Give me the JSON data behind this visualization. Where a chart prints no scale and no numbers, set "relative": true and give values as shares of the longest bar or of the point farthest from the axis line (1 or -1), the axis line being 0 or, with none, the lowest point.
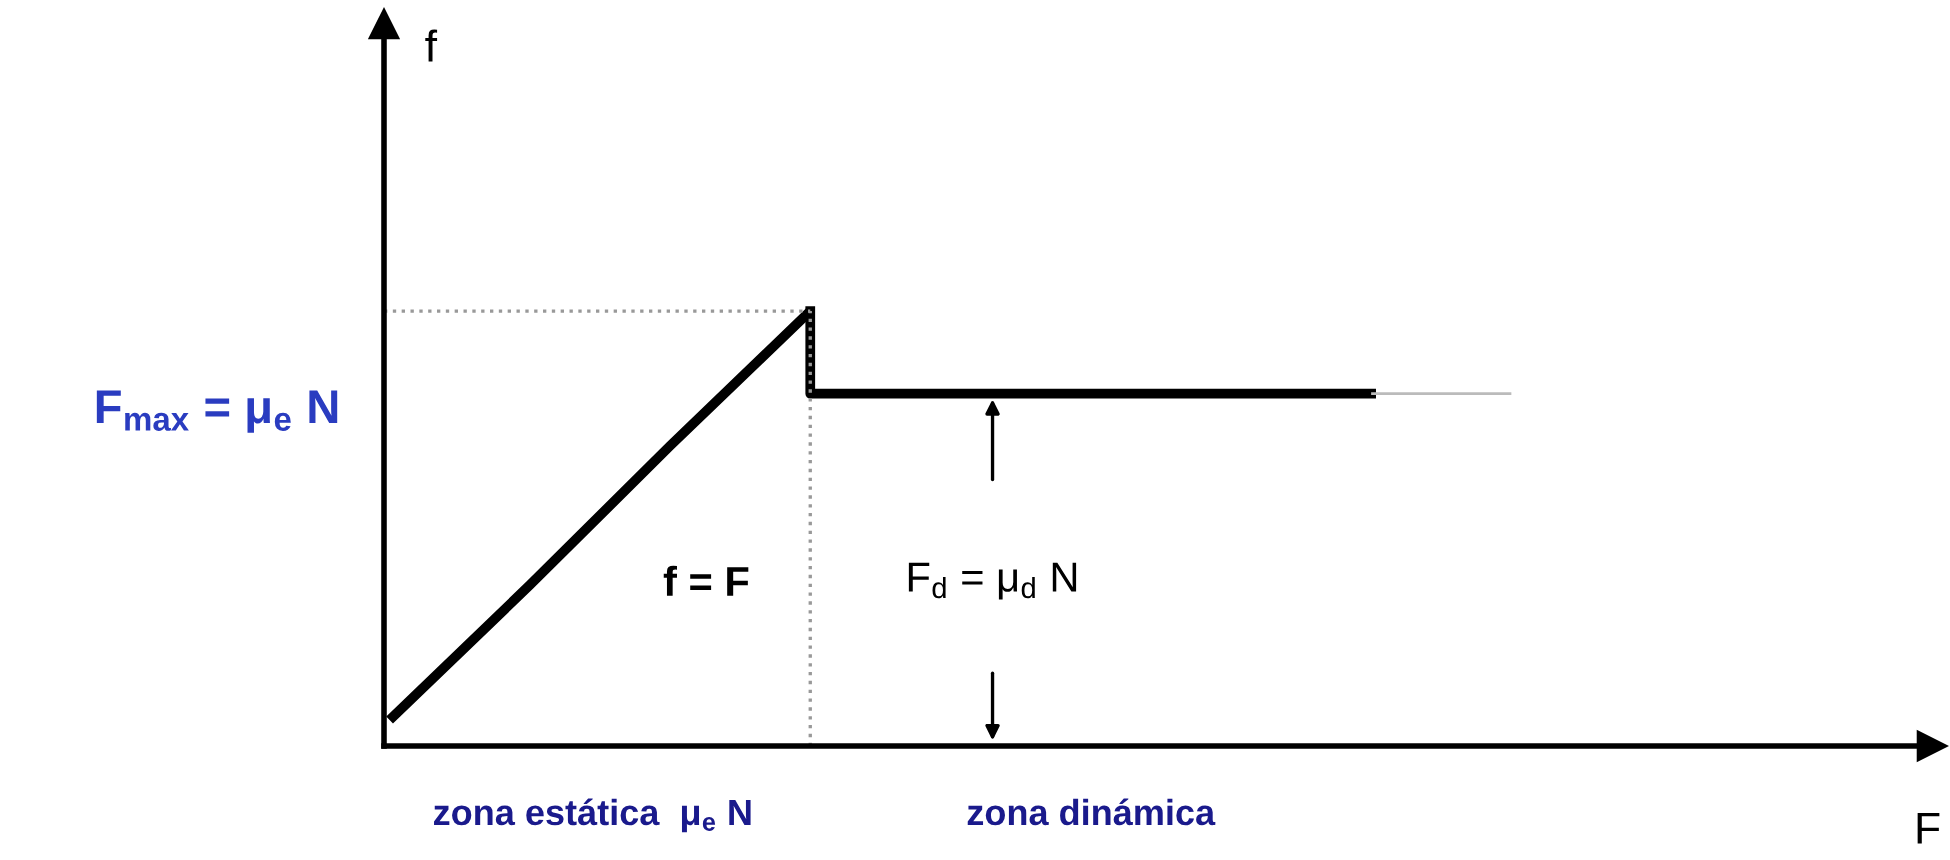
{
  "chart_data": {
    "type": "line",
    "relative": true,
    "xlabel": "F",
    "categories": [
      null,
      null,
      null,
      null,
      null,
      null,
      null,
      null,
      null,
      null,
      null,
      null
    ],
    "series": [
      {
        "color": "#000000",
        "values": [
          0.06,
          0.37,
          0.69,
          1,
          null,
          null,
          null,
          null,
          null,
          null,
          null,
          null
        ]
      },
      {
        "type": "step",
        "color": "#000000",
        "values": [
          null,
          null,
          null,
          1,
          0.81,
          0.81,
          0.81,
          0.81,
          null,
          null,
          null,
          null
        ]
      },
      {
        "type": "line",
        "color": "#bbbbbb",
        "values": [
          null,
          null,
          null,
          null,
          null,
          null,
          null,
          0.81,
          0.81,
          null,
          null,
          null
        ]
      }
    ],
    "ref_lines": [
      {
        "axis": "y",
        "value": 1,
        "label": "F$_{max}$ = μ$_{e}$ N",
        "color": "#999999",
        "line_style": "dotted"
      }
    ],
    "annotations": [
      "f = F",
      "F$_{d}$ = μ$_{d}$ N",
      "zona estática  μ$_{e}$ N",
      "zona dinámica",
      "f"
    ],
    "legend": false,
    "marker": "none"
  }
}
